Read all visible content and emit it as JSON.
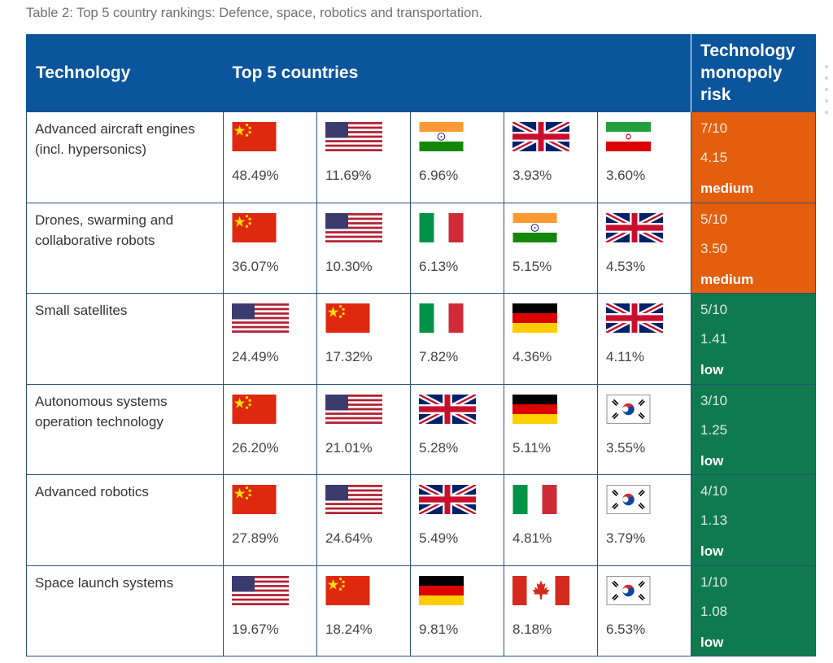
{
  "caption": "Table 2: Top 5 country rankings: Defence, space, robotics and transportation.",
  "headers": {
    "technology": "Technology",
    "top5": "Top 5 countries",
    "risk": "Technology monopoly risk"
  },
  "colors": {
    "header": "#0a559c",
    "medium": "#e35f0d",
    "low": "#0f7a50"
  },
  "rows": [
    {
      "technology": "Advanced aircraft engines (incl. hypersonics)",
      "countries": [
        {
          "flag": "china-flag-icon",
          "pct": "48.49%"
        },
        {
          "flag": "usa-flag-icon",
          "pct": "11.69%"
        },
        {
          "flag": "india-flag-icon",
          "pct": "6.96%"
        },
        {
          "flag": "uk-flag-icon",
          "pct": "3.93%"
        },
        {
          "flag": "iran-flag-icon",
          "pct": "3.60%"
        }
      ],
      "risk": {
        "score": "7/10",
        "value": "4.15",
        "level": "medium"
      }
    },
    {
      "technology": "Drones, swarming and collaborative robots",
      "countries": [
        {
          "flag": "china-flag-icon",
          "pct": "36.07%"
        },
        {
          "flag": "usa-flag-icon",
          "pct": "10.30%"
        },
        {
          "flag": "italy-flag-icon",
          "pct": "6.13%"
        },
        {
          "flag": "india-flag-icon",
          "pct": "5.15%"
        },
        {
          "flag": "uk-flag-icon",
          "pct": "4.53%"
        }
      ],
      "risk": {
        "score": "5/10",
        "value": "3.50",
        "level": "medium"
      }
    },
    {
      "technology": "Small satellites",
      "countries": [
        {
          "flag": "usa-flag-icon",
          "pct": "24.49%"
        },
        {
          "flag": "china-flag-icon",
          "pct": "17.32%"
        },
        {
          "flag": "italy-flag-icon",
          "pct": "7.82%"
        },
        {
          "flag": "germany-flag-icon",
          "pct": "4.36%"
        },
        {
          "flag": "uk-flag-icon",
          "pct": "4.11%"
        }
      ],
      "risk": {
        "score": "5/10",
        "value": "1.41",
        "level": "low"
      }
    },
    {
      "technology": "Autonomous systems operation technology",
      "countries": [
        {
          "flag": "china-flag-icon",
          "pct": "26.20%"
        },
        {
          "flag": "usa-flag-icon",
          "pct": "21.01%"
        },
        {
          "flag": "uk-flag-icon",
          "pct": "5.28%"
        },
        {
          "flag": "germany-flag-icon",
          "pct": "5.11%"
        },
        {
          "flag": "south-korea-flag-icon",
          "pct": "3.55%"
        }
      ],
      "risk": {
        "score": "3/10",
        "value": "1.25",
        "level": "low"
      }
    },
    {
      "technology": "Advanced robotics",
      "countries": [
        {
          "flag": "china-flag-icon",
          "pct": "27.89%"
        },
        {
          "flag": "usa-flag-icon",
          "pct": "24.64%"
        },
        {
          "flag": "uk-flag-icon",
          "pct": "5.49%"
        },
        {
          "flag": "italy-flag-icon",
          "pct": "4.81%"
        },
        {
          "flag": "south-korea-flag-icon",
          "pct": "3.79%"
        }
      ],
      "risk": {
        "score": "4/10",
        "value": "1.13",
        "level": "low"
      }
    },
    {
      "technology": "Space launch systems",
      "countries": [
        {
          "flag": "usa-flag-icon",
          "pct": "19.67%"
        },
        {
          "flag": "china-flag-icon",
          "pct": "18.24%"
        },
        {
          "flag": "germany-flag-icon",
          "pct": "9.81%"
        },
        {
          "flag": "canada-flag-icon",
          "pct": "8.18%"
        },
        {
          "flag": "south-korea-flag-icon",
          "pct": "6.53%"
        }
      ],
      "risk": {
        "score": "1/10",
        "value": "1.08",
        "level": "low"
      }
    }
  ]
}
